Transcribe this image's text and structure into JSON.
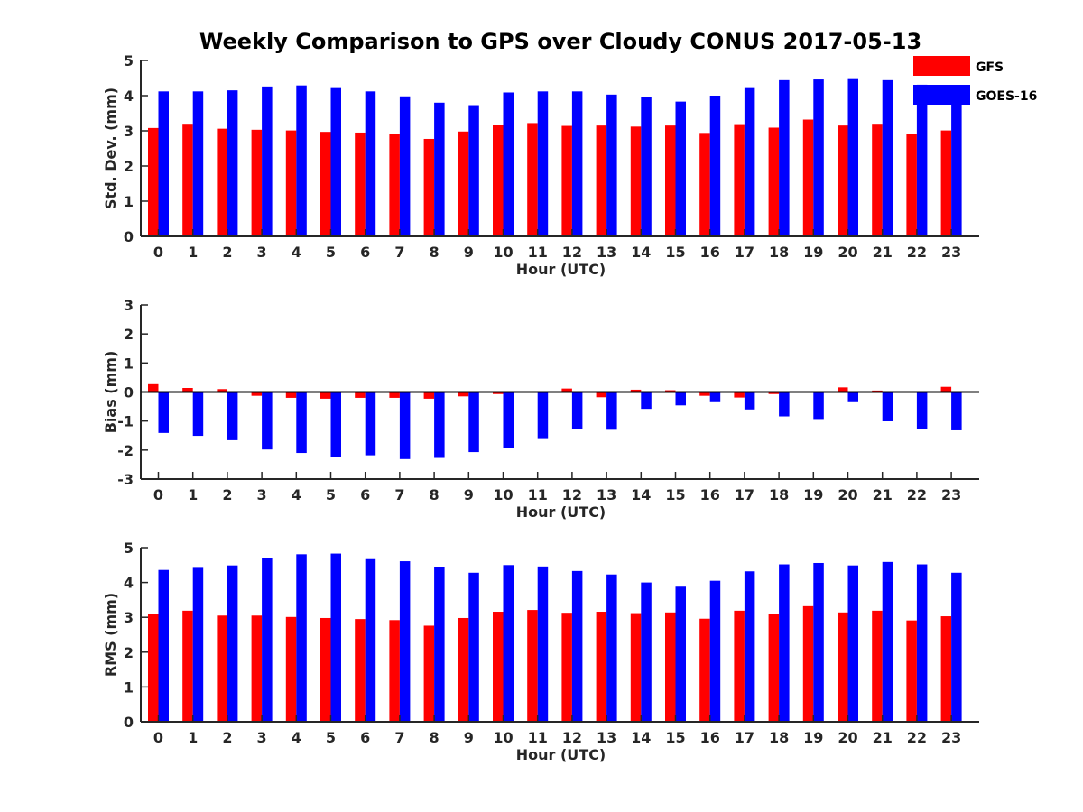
{
  "title": "Weekly Comparison to GPS over Cloudy CONUS 2017-05-13",
  "legend": {
    "placement": "top-right",
    "entries": [
      {
        "name": "GFS",
        "color": "#ff0000"
      },
      {
        "name": "GOES-16",
        "color": "#0000ff"
      }
    ]
  },
  "chart_data": [
    {
      "type": "bar",
      "categories": [
        "0",
        "1",
        "2",
        "3",
        "4",
        "5",
        "6",
        "7",
        "8",
        "9",
        "10",
        "11",
        "12",
        "13",
        "14",
        "15",
        "16",
        "17",
        "18",
        "19",
        "20",
        "21",
        "22",
        "23"
      ],
      "xlabel": "Hour (UTC)",
      "ylabel": "Std. Dev. (mm)",
      "ylim": [
        0,
        5
      ],
      "yticks": [
        0,
        1,
        2,
        3,
        4,
        5
      ],
      "series": [
        {
          "name": "GFS",
          "color": "#ff0000",
          "values": [
            3.08,
            3.2,
            3.06,
            3.03,
            3.01,
            2.97,
            2.95,
            2.91,
            2.77,
            2.98,
            3.17,
            3.22,
            3.14,
            3.15,
            3.12,
            3.15,
            2.94,
            3.19,
            3.09,
            3.32,
            3.15,
            3.2,
            2.92,
            3.01
          ]
        },
        {
          "name": "GOES-16",
          "color": "#0000ff",
          "values": [
            4.12,
            4.12,
            4.15,
            4.26,
            4.29,
            4.24,
            4.12,
            3.98,
            3.8,
            3.73,
            4.09,
            4.12,
            4.12,
            4.03,
            3.95,
            3.83,
            4.0,
            4.24,
            4.44,
            4.46,
            4.47,
            4.44,
            4.31,
            3.78
          ]
        }
      ]
    },
    {
      "type": "bar",
      "categories": [
        "0",
        "1",
        "2",
        "3",
        "4",
        "5",
        "6",
        "7",
        "8",
        "9",
        "10",
        "11",
        "12",
        "13",
        "14",
        "15",
        "16",
        "17",
        "18",
        "19",
        "20",
        "21",
        "22",
        "23"
      ],
      "xlabel": "Hour (UTC)",
      "ylabel": "Bias (mm)",
      "ylim": [
        -3,
        3
      ],
      "yticks": [
        -3,
        -2,
        -1,
        0,
        1,
        2,
        3
      ],
      "series": [
        {
          "name": "GFS",
          "color": "#ff0000",
          "values": [
            0.27,
            0.14,
            0.1,
            -0.13,
            -0.2,
            -0.23,
            -0.2,
            -0.2,
            -0.23,
            -0.15,
            -0.07,
            0.02,
            0.12,
            -0.18,
            0.08,
            0.06,
            -0.13,
            -0.19,
            -0.07,
            0.0,
            0.16,
            0.05,
            0.01,
            0.18
          ]
        },
        {
          "name": "GOES-16",
          "color": "#0000ff",
          "values": [
            -1.41,
            -1.51,
            -1.66,
            -1.98,
            -2.1,
            -2.25,
            -2.18,
            -2.31,
            -2.27,
            -2.07,
            -1.92,
            -1.62,
            -1.26,
            -1.3,
            -0.58,
            -0.46,
            -0.35,
            -0.6,
            -0.84,
            -0.93,
            -0.35,
            -1.01,
            -1.28,
            -1.32
          ]
        }
      ]
    },
    {
      "type": "bar",
      "categories": [
        "0",
        "1",
        "2",
        "3",
        "4",
        "5",
        "6",
        "7",
        "8",
        "9",
        "10",
        "11",
        "12",
        "13",
        "14",
        "15",
        "16",
        "17",
        "18",
        "19",
        "20",
        "21",
        "22",
        "23"
      ],
      "xlabel": "Hour (UTC)",
      "ylabel": "RMS (mm)",
      "ylim": [
        0,
        5
      ],
      "yticks": [
        0,
        1,
        2,
        3,
        4,
        5
      ],
      "series": [
        {
          "name": "GFS",
          "color": "#ff0000",
          "values": [
            3.09,
            3.19,
            3.05,
            3.05,
            3.01,
            2.98,
            2.95,
            2.92,
            2.76,
            2.98,
            3.16,
            3.21,
            3.13,
            3.16,
            3.12,
            3.14,
            2.96,
            3.19,
            3.09,
            3.32,
            3.14,
            3.19,
            2.91,
            3.03
          ]
        },
        {
          "name": "GOES-16",
          "color": "#0000ff",
          "values": [
            4.36,
            4.42,
            4.49,
            4.71,
            4.81,
            4.83,
            4.67,
            4.61,
            4.44,
            4.28,
            4.5,
            4.46,
            4.33,
            4.23,
            4.0,
            3.88,
            4.05,
            4.32,
            4.52,
            4.56,
            4.49,
            4.59,
            4.52,
            4.28
          ]
        }
      ]
    }
  ]
}
